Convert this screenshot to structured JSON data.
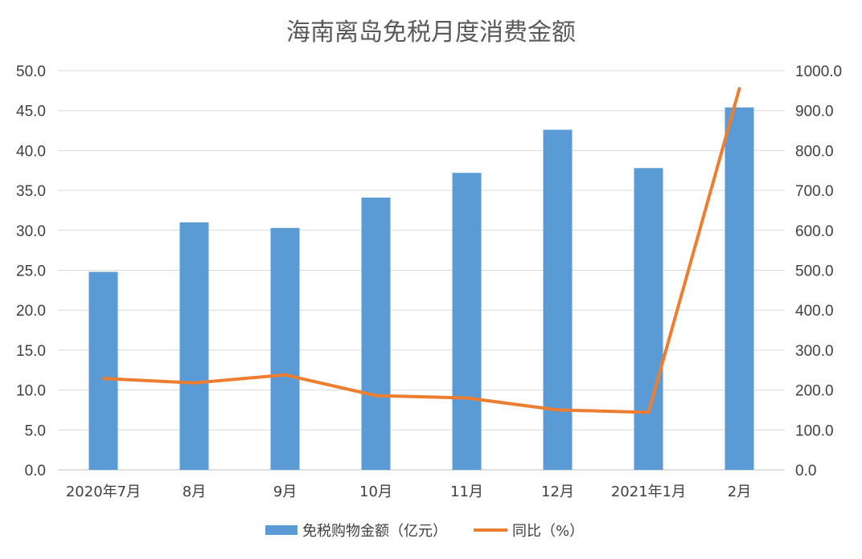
{
  "chart_data": {
    "type": "bar",
    "title": "海南离岛免税月度消费金额",
    "categories": [
      "2020年7月",
      "8月",
      "9月",
      "10月",
      "11月",
      "12月",
      "2021年1月",
      "2月"
    ],
    "series": [
      {
        "name": "免税购物金额（亿元）",
        "type": "bar",
        "axis": "left",
        "color": "#5b9bd5",
        "values": [
          24.8,
          31.0,
          30.3,
          34.1,
          37.2,
          42.6,
          37.8,
          45.4
        ]
      },
      {
        "name": "同比（%）",
        "type": "line",
        "axis": "right",
        "color": "#ed7d31",
        "values": [
          229,
          218,
          238,
          186,
          180,
          150,
          144,
          955
        ]
      }
    ],
    "y_left": {
      "lim": [
        0,
        50
      ],
      "ticks": [
        "0.0",
        "5.0",
        "10.0",
        "15.0",
        "20.0",
        "25.0",
        "30.0",
        "35.0",
        "40.0",
        "45.0",
        "50.0"
      ]
    },
    "y_right": {
      "lim": [
        0,
        1000
      ],
      "ticks": [
        "0.0",
        "100.0",
        "200.0",
        "300.0",
        "400.0",
        "500.0",
        "600.0",
        "700.0",
        "800.0",
        "900.0",
        "1000.0"
      ]
    },
    "grid": true,
    "legend": "bottom"
  }
}
